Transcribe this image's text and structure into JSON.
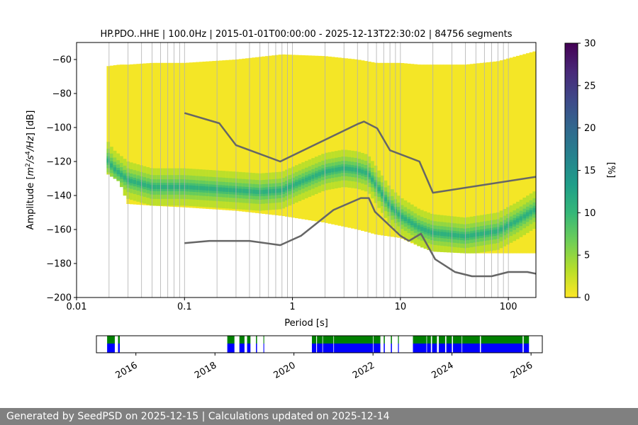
{
  "chart_data": [
    {
      "type": "heatmap",
      "title": "HP.PDO..HHE | 100.0Hz | 2015-01-01T00:00:00 - 2025-12-13T22:30:02 | 84756 segments",
      "xlabel": "Period [s]",
      "ylabel_parts": [
        "Amplitude [",
        "m",
        "2",
        "/s",
        "4",
        "/Hz",
        "] [dB]"
      ],
      "x_scale": "log",
      "xlim": [
        0.01,
        180
      ],
      "ylim": [
        -200,
        -50
      ],
      "x_ticks": [
        0.01,
        0.1,
        1,
        10,
        100
      ],
      "x_tick_labels": [
        "0.01",
        "0.1",
        "1",
        "10",
        "100"
      ],
      "y_ticks": [
        -200,
        -180,
        -160,
        -140,
        -120,
        -100,
        -80,
        -60
      ],
      "y_tick_labels": [
        "−200",
        "−180",
        "−160",
        "−140",
        "−120",
        "−100",
        "−80",
        "−60"
      ],
      "grid_periods": [
        0.02,
        0.03,
        0.04,
        0.05,
        0.06,
        0.07,
        0.08,
        0.09,
        0.2,
        0.3,
        0.4,
        0.5,
        0.6,
        0.7,
        0.8,
        0.9,
        2,
        3,
        4,
        5,
        6,
        7,
        8,
        9,
        20,
        30,
        40,
        50,
        60,
        70,
        80,
        90
      ],
      "colorbar": {
        "label": "[%]",
        "range": [
          0,
          30
        ],
        "ticks": [
          0,
          5,
          10,
          15,
          20,
          25,
          30
        ],
        "colors": [
          "#fde725",
          "#b5de2b",
          "#6ece58",
          "#35b779",
          "#1f9e89",
          "#26828e",
          "#31688e",
          "#3e4989",
          "#482878",
          "#440154"
        ]
      },
      "density_extent": {
        "period": [
          0.019,
          0.025,
          0.03,
          0.05,
          0.1,
          0.3,
          0.8,
          2,
          4,
          6,
          10,
          15,
          20,
          40,
          80,
          180
        ],
        "upper_db": [
          -64,
          -63,
          -63,
          -62,
          -62,
          -60,
          -57,
          -58,
          -60,
          -62,
          -62,
          -63,
          -63,
          -63,
          -61,
          -55
        ],
        "lower_db": [
          -127,
          -132,
          -145,
          -146,
          -147,
          -149,
          -152,
          -156,
          -160,
          -163,
          -165,
          -170,
          -173,
          -174,
          -174,
          -174
        ]
      },
      "mode_band": {
        "period": [
          0.019,
          0.022,
          0.03,
          0.05,
          0.1,
          0.3,
          0.5,
          0.8,
          1.2,
          2,
          3,
          4,
          5,
          6,
          8,
          10,
          15,
          20,
          40,
          80,
          120,
          180
        ],
        "center_db": [
          -118,
          -124,
          -131,
          -135,
          -135,
          -137,
          -138,
          -137,
          -132,
          -126,
          -124,
          -125,
          -127,
          -134,
          -146,
          -152,
          -159,
          -162,
          -164,
          -161,
          -155,
          -148
        ]
      },
      "series": [
        {
          "name": "",
          "color": "#666666",
          "period": [
            0.1,
            0.21,
            0.3,
            0.77,
            4,
            4.6,
            6.1,
            8,
            15,
            20,
            180
          ],
          "db": [
            -91.5,
            -97.5,
            -110.4,
            -120,
            -98,
            -96.5,
            -100.5,
            -113.4,
            -120,
            -138.4,
            -129
          ]
        },
        {
          "name": "",
          "color": "#666666",
          "period": [
            0.1,
            0.17,
            0.4,
            0.77,
            1.2,
            2.4,
            4.3,
            5.1,
            5.8,
            10,
            12,
            15.5,
            21,
            32,
            46,
            70,
            100,
            150,
            180
          ],
          "db": [
            -168,
            -166.7,
            -166.7,
            -169.2,
            -163.7,
            -148.5,
            -141.5,
            -141.5,
            -149.5,
            -163.7,
            -166.7,
            -162.5,
            -177.5,
            -185,
            -187.5,
            -187.5,
            -185,
            -185,
            -186
          ]
        }
      ]
    },
    {
      "type": "timeline",
      "xlim": [
        "2015-01-01",
        "2026-04-15"
      ],
      "x_ticks": [
        "2016-01-01",
        "2018-01-01",
        "2020-01-01",
        "2022-01-01",
        "2024-01-01",
        "2026-01-01"
      ],
      "x_tick_labels": [
        "2016",
        "2018",
        "2020",
        "2022",
        "2024",
        "2026"
      ],
      "colors": {
        "top": "#008000",
        "bottom": "#0000ff"
      },
      "segments": [
        [
          "2015-04-10",
          "2015-06-20"
        ],
        [
          "2015-07-20",
          "2015-08-05"
        ],
        [
          "2018-04-25",
          "2018-06-30"
        ],
        [
          "2018-08-15",
          "2018-10-01"
        ],
        [
          "2018-10-25",
          "2018-11-25"
        ],
        [
          "2019-01-15",
          "2019-01-25"
        ],
        [
          "2019-03-25",
          "2019-04-01"
        ],
        [
          "2020-06-15",
          "2020-07-25"
        ],
        [
          "2020-08-01",
          "2020-09-20"
        ],
        [
          "2020-09-25",
          "2020-12-31"
        ],
        [
          "2021-01-05",
          "2021-12-31"
        ],
        [
          "2022-01-05",
          "2022-03-10"
        ],
        [
          "2022-04-10",
          "2022-04-20"
        ],
        [
          "2022-06-15",
          "2022-06-25"
        ],
        [
          "2022-08-20",
          "2022-08-28"
        ],
        [
          "2023-01-05",
          "2023-05-10"
        ],
        [
          "2023-05-15",
          "2023-06-20"
        ],
        [
          "2023-07-01",
          "2023-08-15"
        ],
        [
          "2023-09-01",
          "2023-10-30"
        ],
        [
          "2023-11-10",
          "2023-12-31"
        ],
        [
          "2024-01-10",
          "2024-03-31"
        ],
        [
          "2024-04-05",
          "2024-09-15"
        ],
        [
          "2024-09-25",
          "2025-10-15"
        ],
        [
          "2025-10-25",
          "2025-12-13"
        ]
      ]
    }
  ],
  "footer": {
    "text": "Generated by SeedPSD on 2025-12-15 | Calculations updated on 2025-12-14"
  }
}
